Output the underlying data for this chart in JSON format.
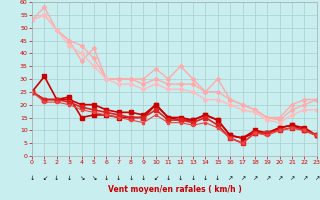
{
  "xlabel": "Vent moyen/en rafales ( km/h )",
  "xlim": [
    0,
    23
  ],
  "ylim": [
    0,
    60
  ],
  "yticks": [
    0,
    5,
    10,
    15,
    20,
    25,
    30,
    35,
    40,
    45,
    50,
    55,
    60
  ],
  "xticks": [
    0,
    1,
    2,
    3,
    4,
    5,
    6,
    7,
    8,
    9,
    10,
    11,
    12,
    13,
    14,
    15,
    16,
    17,
    18,
    19,
    20,
    21,
    22,
    23
  ],
  "background_color": "#c8eef0",
  "grid_color": "#aacccc",
  "series": [
    {
      "x": [
        0,
        1,
        2,
        3,
        4,
        5,
        6,
        7,
        8,
        9,
        10,
        11,
        12,
        13,
        14,
        15,
        16,
        17,
        18,
        19,
        20,
        21,
        22,
        23
      ],
      "y": [
        53,
        58,
        49,
        45,
        37,
        42,
        30,
        30,
        30,
        30,
        34,
        30,
        35,
        30,
        25,
        30,
        22,
        20,
        18,
        15,
        15,
        20,
        22,
        22
      ],
      "color": "#ffaaaa",
      "lw": 1.0,
      "marker": "D",
      "ms": 2.0
    },
    {
      "x": [
        0,
        1,
        2,
        3,
        4,
        5,
        6,
        7,
        8,
        9,
        10,
        11,
        12,
        13,
        14,
        15,
        16,
        17,
        18,
        19,
        20,
        21,
        22,
        23
      ],
      "y": [
        53,
        55,
        49,
        45,
        43,
        38,
        30,
        30,
        30,
        28,
        30,
        28,
        28,
        28,
        25,
        25,
        22,
        20,
        18,
        15,
        14,
        18,
        20,
        22
      ],
      "color": "#ffaaaa",
      "lw": 1.0,
      "marker": "D",
      "ms": 2.0
    },
    {
      "x": [
        0,
        1,
        2,
        3,
        4,
        5,
        6,
        7,
        8,
        9,
        10,
        11,
        12,
        13,
        14,
        15,
        16,
        17,
        18,
        19,
        20,
        21,
        22,
        23
      ],
      "y": [
        53,
        55,
        49,
        43,
        40,
        35,
        30,
        28,
        28,
        26,
        28,
        26,
        26,
        25,
        22,
        22,
        20,
        18,
        17,
        14,
        13,
        16,
        18,
        18
      ],
      "color": "#ffbbbb",
      "lw": 1.0,
      "marker": "D",
      "ms": 2.0
    },
    {
      "x": [
        0,
        1,
        2,
        3,
        4,
        5,
        6,
        7,
        8,
        9,
        10,
        11,
        12,
        13,
        14,
        15,
        16,
        17,
        18,
        19,
        20,
        21,
        22,
        23
      ],
      "y": [
        25,
        31,
        22,
        23,
        15,
        16,
        16,
        15,
        15,
        15,
        20,
        15,
        14,
        14,
        16,
        14,
        8,
        7,
        10,
        9,
        11,
        12,
        10,
        8
      ],
      "color": "#cc0000",
      "lw": 1.2,
      "marker": "s",
      "ms": 2.5
    },
    {
      "x": [
        0,
        1,
        2,
        3,
        4,
        5,
        6,
        7,
        8,
        9,
        10,
        11,
        12,
        13,
        14,
        15,
        16,
        17,
        18,
        19,
        20,
        21,
        22,
        23
      ],
      "y": [
        25,
        22,
        22,
        22,
        20,
        20,
        18,
        17,
        17,
        16,
        20,
        15,
        15,
        14,
        16,
        14,
        8,
        7,
        9,
        9,
        11,
        12,
        11,
        8
      ],
      "color": "#cc0000",
      "lw": 1.2,
      "marker": "s",
      "ms": 2.5
    },
    {
      "x": [
        0,
        1,
        2,
        3,
        4,
        5,
        6,
        7,
        8,
        9,
        10,
        11,
        12,
        13,
        14,
        15,
        16,
        17,
        18,
        19,
        20,
        21,
        22,
        23
      ],
      "y": [
        25,
        22,
        22,
        21,
        19,
        18,
        17,
        16,
        15,
        15,
        18,
        14,
        14,
        13,
        15,
        12,
        7,
        5,
        9,
        9,
        10,
        11,
        10,
        8
      ],
      "color": "#dd2222",
      "lw": 1.2,
      "marker": "s",
      "ms": 2.5
    },
    {
      "x": [
        0,
        1,
        2,
        3,
        4,
        5,
        6,
        7,
        8,
        9,
        10,
        11,
        12,
        13,
        14,
        15,
        16,
        17,
        18,
        19,
        20,
        21,
        22,
        23
      ],
      "y": [
        25,
        21,
        21,
        20,
        18,
        17,
        16,
        15,
        14,
        13,
        16,
        13,
        13,
        12,
        13,
        11,
        7,
        5,
        9,
        8,
        10,
        11,
        10,
        8
      ],
      "color": "#ee4444",
      "lw": 0.8,
      "marker": "s",
      "ms": 2.0
    }
  ],
  "wind_arrows": [
    "↓",
    "↙",
    "↓",
    "↓",
    "↘",
    "↘",
    "↓",
    "↓",
    "↓",
    "↓",
    "↙",
    "↓",
    "↓",
    "↓",
    "↓",
    "↓",
    "↗",
    "↗",
    "↗",
    "↗",
    "↗",
    "↗",
    "↗",
    "↗"
  ]
}
